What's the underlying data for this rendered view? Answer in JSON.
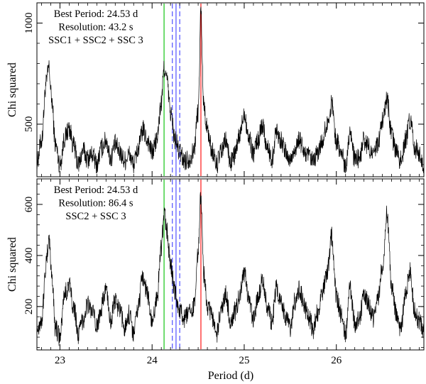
{
  "chart_data": [
    {
      "type": "line",
      "panel": "top",
      "ylabel": "Chi squared",
      "xlabel": "",
      "xlim": [
        22.75,
        26.95
      ],
      "ylim": [
        240,
        1100
      ],
      "yticks": [
        500,
        1000
      ],
      "xticks": [
        23,
        24,
        25,
        26
      ],
      "annotations": [
        "Best Period: 24.53 d",
        "Resolution: 43.2 s",
        "SSC1 + SSC2 + SSC 3"
      ],
      "vlines": [
        {
          "x": 24.13,
          "color": "#00c000",
          "style": "solid"
        },
        {
          "x": 24.22,
          "color": "#4040ff",
          "style": "dashed"
        },
        {
          "x": 24.26,
          "color": "#4040ff",
          "style": "solid"
        },
        {
          "x": 24.3,
          "color": "#4040ff",
          "style": "dashed"
        },
        {
          "x": 24.53,
          "color": "#ff0000",
          "style": "solid"
        }
      ],
      "series": [
        {
          "x": [
            22.75,
            22.8,
            22.85,
            22.88,
            22.91,
            22.95,
            23.0,
            23.05,
            23.1,
            23.15,
            23.2,
            23.25,
            23.3,
            23.35,
            23.4,
            23.45,
            23.5,
            23.55,
            23.6,
            23.65,
            23.7,
            23.75,
            23.8,
            23.85,
            23.9,
            23.95,
            24.0,
            24.05,
            24.1,
            24.13,
            24.16,
            24.2,
            24.25,
            24.3,
            24.35,
            24.4,
            24.45,
            24.5,
            24.53,
            24.56,
            24.6,
            24.65,
            24.7,
            24.75,
            24.8,
            24.85,
            24.9,
            24.95,
            25.0,
            25.05,
            25.1,
            25.15,
            25.2,
            25.25,
            25.3,
            25.35,
            25.4,
            25.45,
            25.5,
            25.55,
            25.6,
            25.65,
            25.7,
            25.75,
            25.8,
            25.85,
            25.9,
            25.95,
            26.0,
            26.05,
            26.1,
            26.15,
            26.2,
            26.25,
            26.3,
            26.35,
            26.4,
            26.45,
            26.5,
            26.55,
            26.6,
            26.65,
            26.7,
            26.75,
            26.8,
            26.85,
            26.9,
            26.95
          ],
          "y": [
            310,
            420,
            700,
            780,
            620,
            400,
            300,
            430,
            480,
            390,
            300,
            370,
            330,
            350,
            300,
            380,
            420,
            330,
            400,
            360,
            320,
            350,
            300,
            380,
            470,
            420,
            360,
            420,
            600,
            780,
            720,
            560,
            420,
            360,
            320,
            330,
            360,
            560,
            1060,
            600,
            470,
            370,
            300,
            360,
            420,
            310,
            350,
            440,
            560,
            430,
            360,
            420,
            500,
            380,
            330,
            470,
            420,
            360,
            320,
            380,
            420,
            360,
            340,
            310,
            360,
            420,
            500,
            600,
            420,
            360,
            300,
            470,
            320,
            330,
            420,
            390,
            340,
            400,
            520,
            620,
            440,
            360,
            320,
            420,
            520,
            380,
            360,
            300
          ]
        }
      ]
    },
    {
      "type": "line",
      "panel": "bottom",
      "ylabel": "Chi squared",
      "xlabel": "Period (d)",
      "xlim": [
        22.75,
        26.95
      ],
      "ylim": [
        30,
        700
      ],
      "yticks": [
        200,
        400,
        600
      ],
      "xticks": [
        23,
        24,
        25,
        26
      ],
      "annotations": [
        "Best Period: 24.53 d",
        "Resolution: 86.4 s",
        "SSC2 + SSC 3"
      ],
      "vlines": [
        {
          "x": 24.13,
          "color": "#00c000",
          "style": "solid"
        },
        {
          "x": 24.22,
          "color": "#4040ff",
          "style": "dashed"
        },
        {
          "x": 24.26,
          "color": "#4040ff",
          "style": "solid"
        },
        {
          "x": 24.3,
          "color": "#4040ff",
          "style": "dashed"
        },
        {
          "x": 24.53,
          "color": "#ff0000",
          "style": "solid"
        }
      ],
      "series": [
        {
          "x": [
            22.75,
            22.8,
            22.85,
            22.88,
            22.91,
            22.95,
            23.0,
            23.05,
            23.1,
            23.15,
            23.2,
            23.25,
            23.3,
            23.35,
            23.4,
            23.45,
            23.5,
            23.55,
            23.6,
            23.65,
            23.7,
            23.75,
            23.8,
            23.85,
            23.9,
            23.95,
            24.0,
            24.05,
            24.1,
            24.13,
            24.16,
            24.2,
            24.25,
            24.3,
            24.35,
            24.4,
            24.45,
            24.5,
            24.53,
            24.56,
            24.6,
            24.65,
            24.7,
            24.75,
            24.8,
            24.85,
            24.9,
            24.95,
            25.0,
            25.05,
            25.1,
            25.15,
            25.2,
            25.25,
            25.3,
            25.35,
            25.4,
            25.45,
            25.5,
            25.55,
            25.6,
            25.65,
            25.7,
            25.75,
            25.8,
            25.85,
            25.9,
            25.95,
            26.0,
            26.05,
            26.1,
            26.15,
            26.2,
            26.25,
            26.3,
            26.35,
            26.4,
            26.45,
            26.5,
            26.55,
            26.6,
            26.65,
            26.7,
            26.75,
            26.8,
            26.85,
            26.9,
            26.95
          ],
          "y": [
            110,
            150,
            360,
            470,
            330,
            120,
            80,
            250,
            280,
            200,
            90,
            150,
            210,
            180,
            120,
            200,
            270,
            150,
            220,
            180,
            120,
            170,
            100,
            200,
            320,
            250,
            130,
            230,
            430,
            570,
            500,
            360,
            250,
            180,
            150,
            170,
            200,
            410,
            640,
            330,
            200,
            160,
            90,
            180,
            250,
            140,
            180,
            240,
            330,
            220,
            150,
            240,
            300,
            200,
            140,
            270,
            230,
            160,
            120,
            220,
            270,
            200,
            160,
            110,
            180,
            260,
            330,
            480,
            240,
            170,
            100,
            270,
            130,
            150,
            250,
            210,
            150,
            230,
            360,
            560,
            280,
            170,
            110,
            250,
            340,
            180,
            150,
            110
          ]
        }
      ]
    }
  ]
}
